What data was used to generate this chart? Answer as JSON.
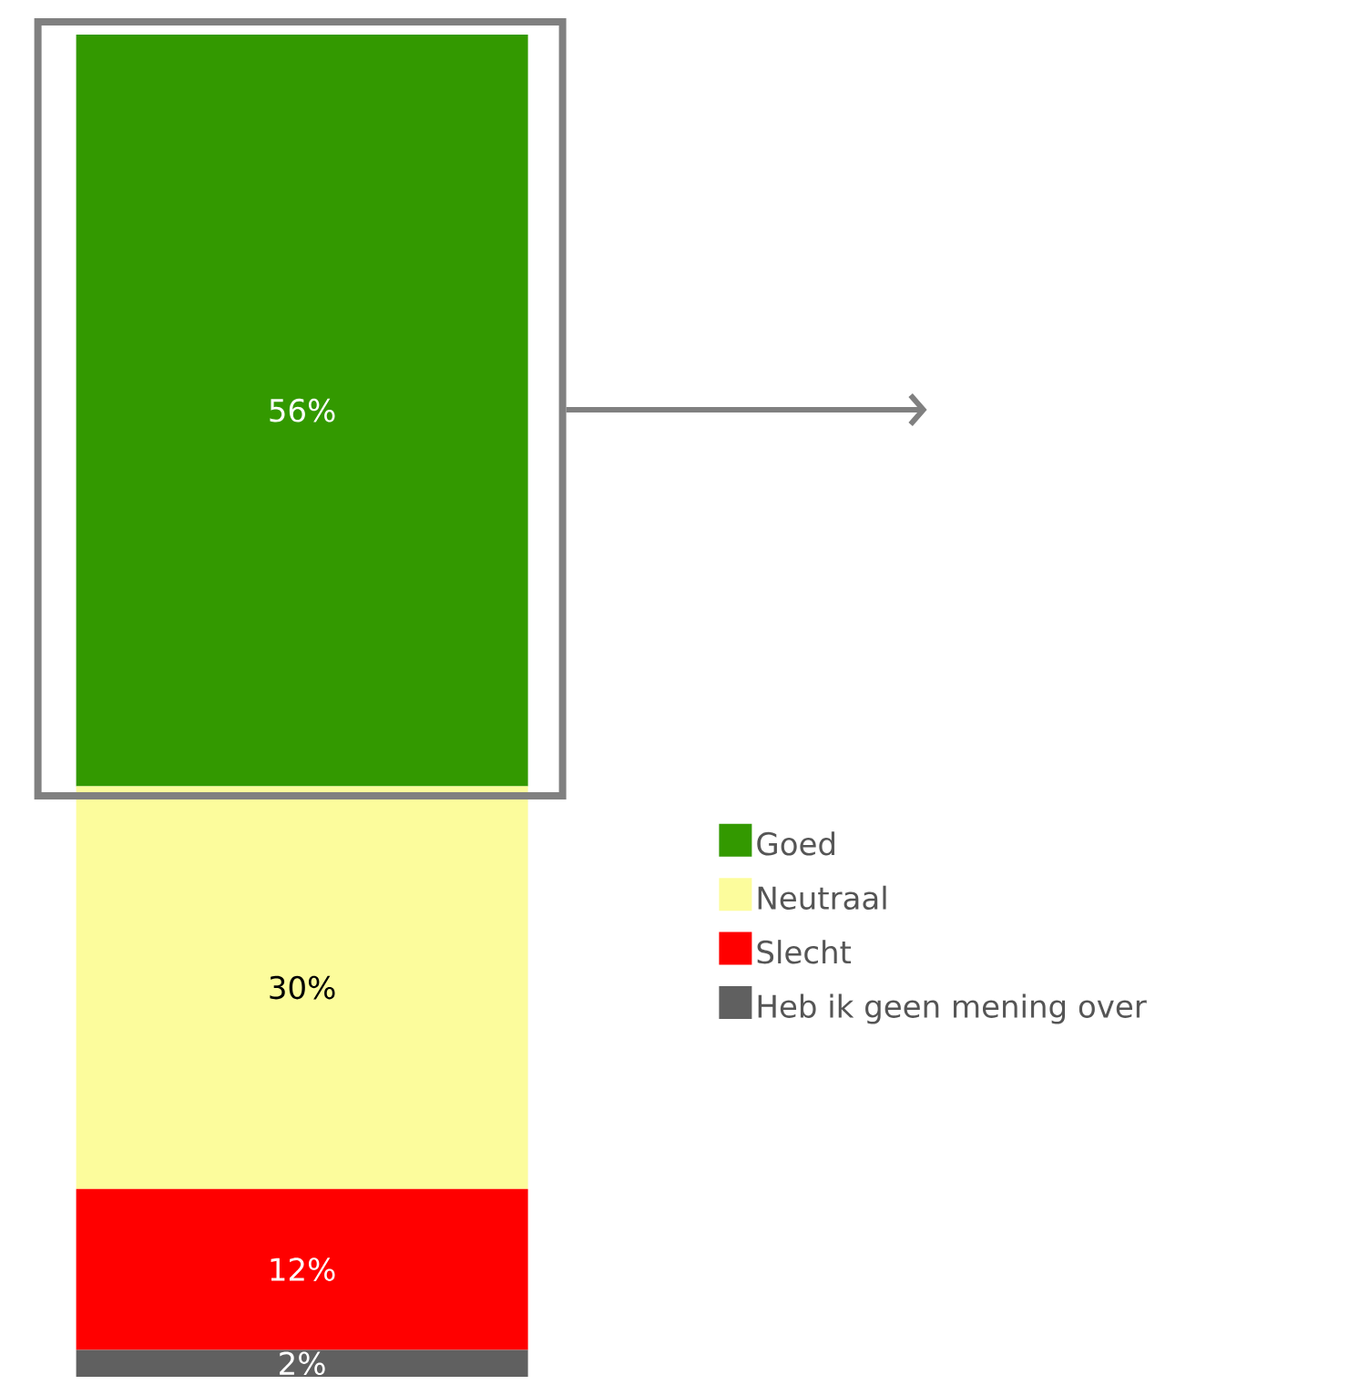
{
  "chart_data": {
    "type": "bar",
    "stacked": true,
    "categories": [
      null
    ],
    "ylim": [
      0,
      100
    ],
    "legend": "right",
    "tick_labels": false,
    "series": [
      {
        "name": "Heb ik geen mening over",
        "color": "#606060",
        "values": [
          2
        ],
        "value_labels": [
          "2%"
        ]
      },
      {
        "name": "Slecht",
        "color": "#ff0000",
        "values": [
          12
        ],
        "value_labels": [
          "12%"
        ]
      },
      {
        "name": "Neutraal",
        "color": "#fcfc9c",
        "values": [
          30
        ],
        "value_labels": [
          "30%"
        ]
      },
      {
        "name": "Goed",
        "color": "#339900",
        "values": [
          56
        ],
        "value_labels": [
          "56%"
        ]
      }
    ]
  }
}
